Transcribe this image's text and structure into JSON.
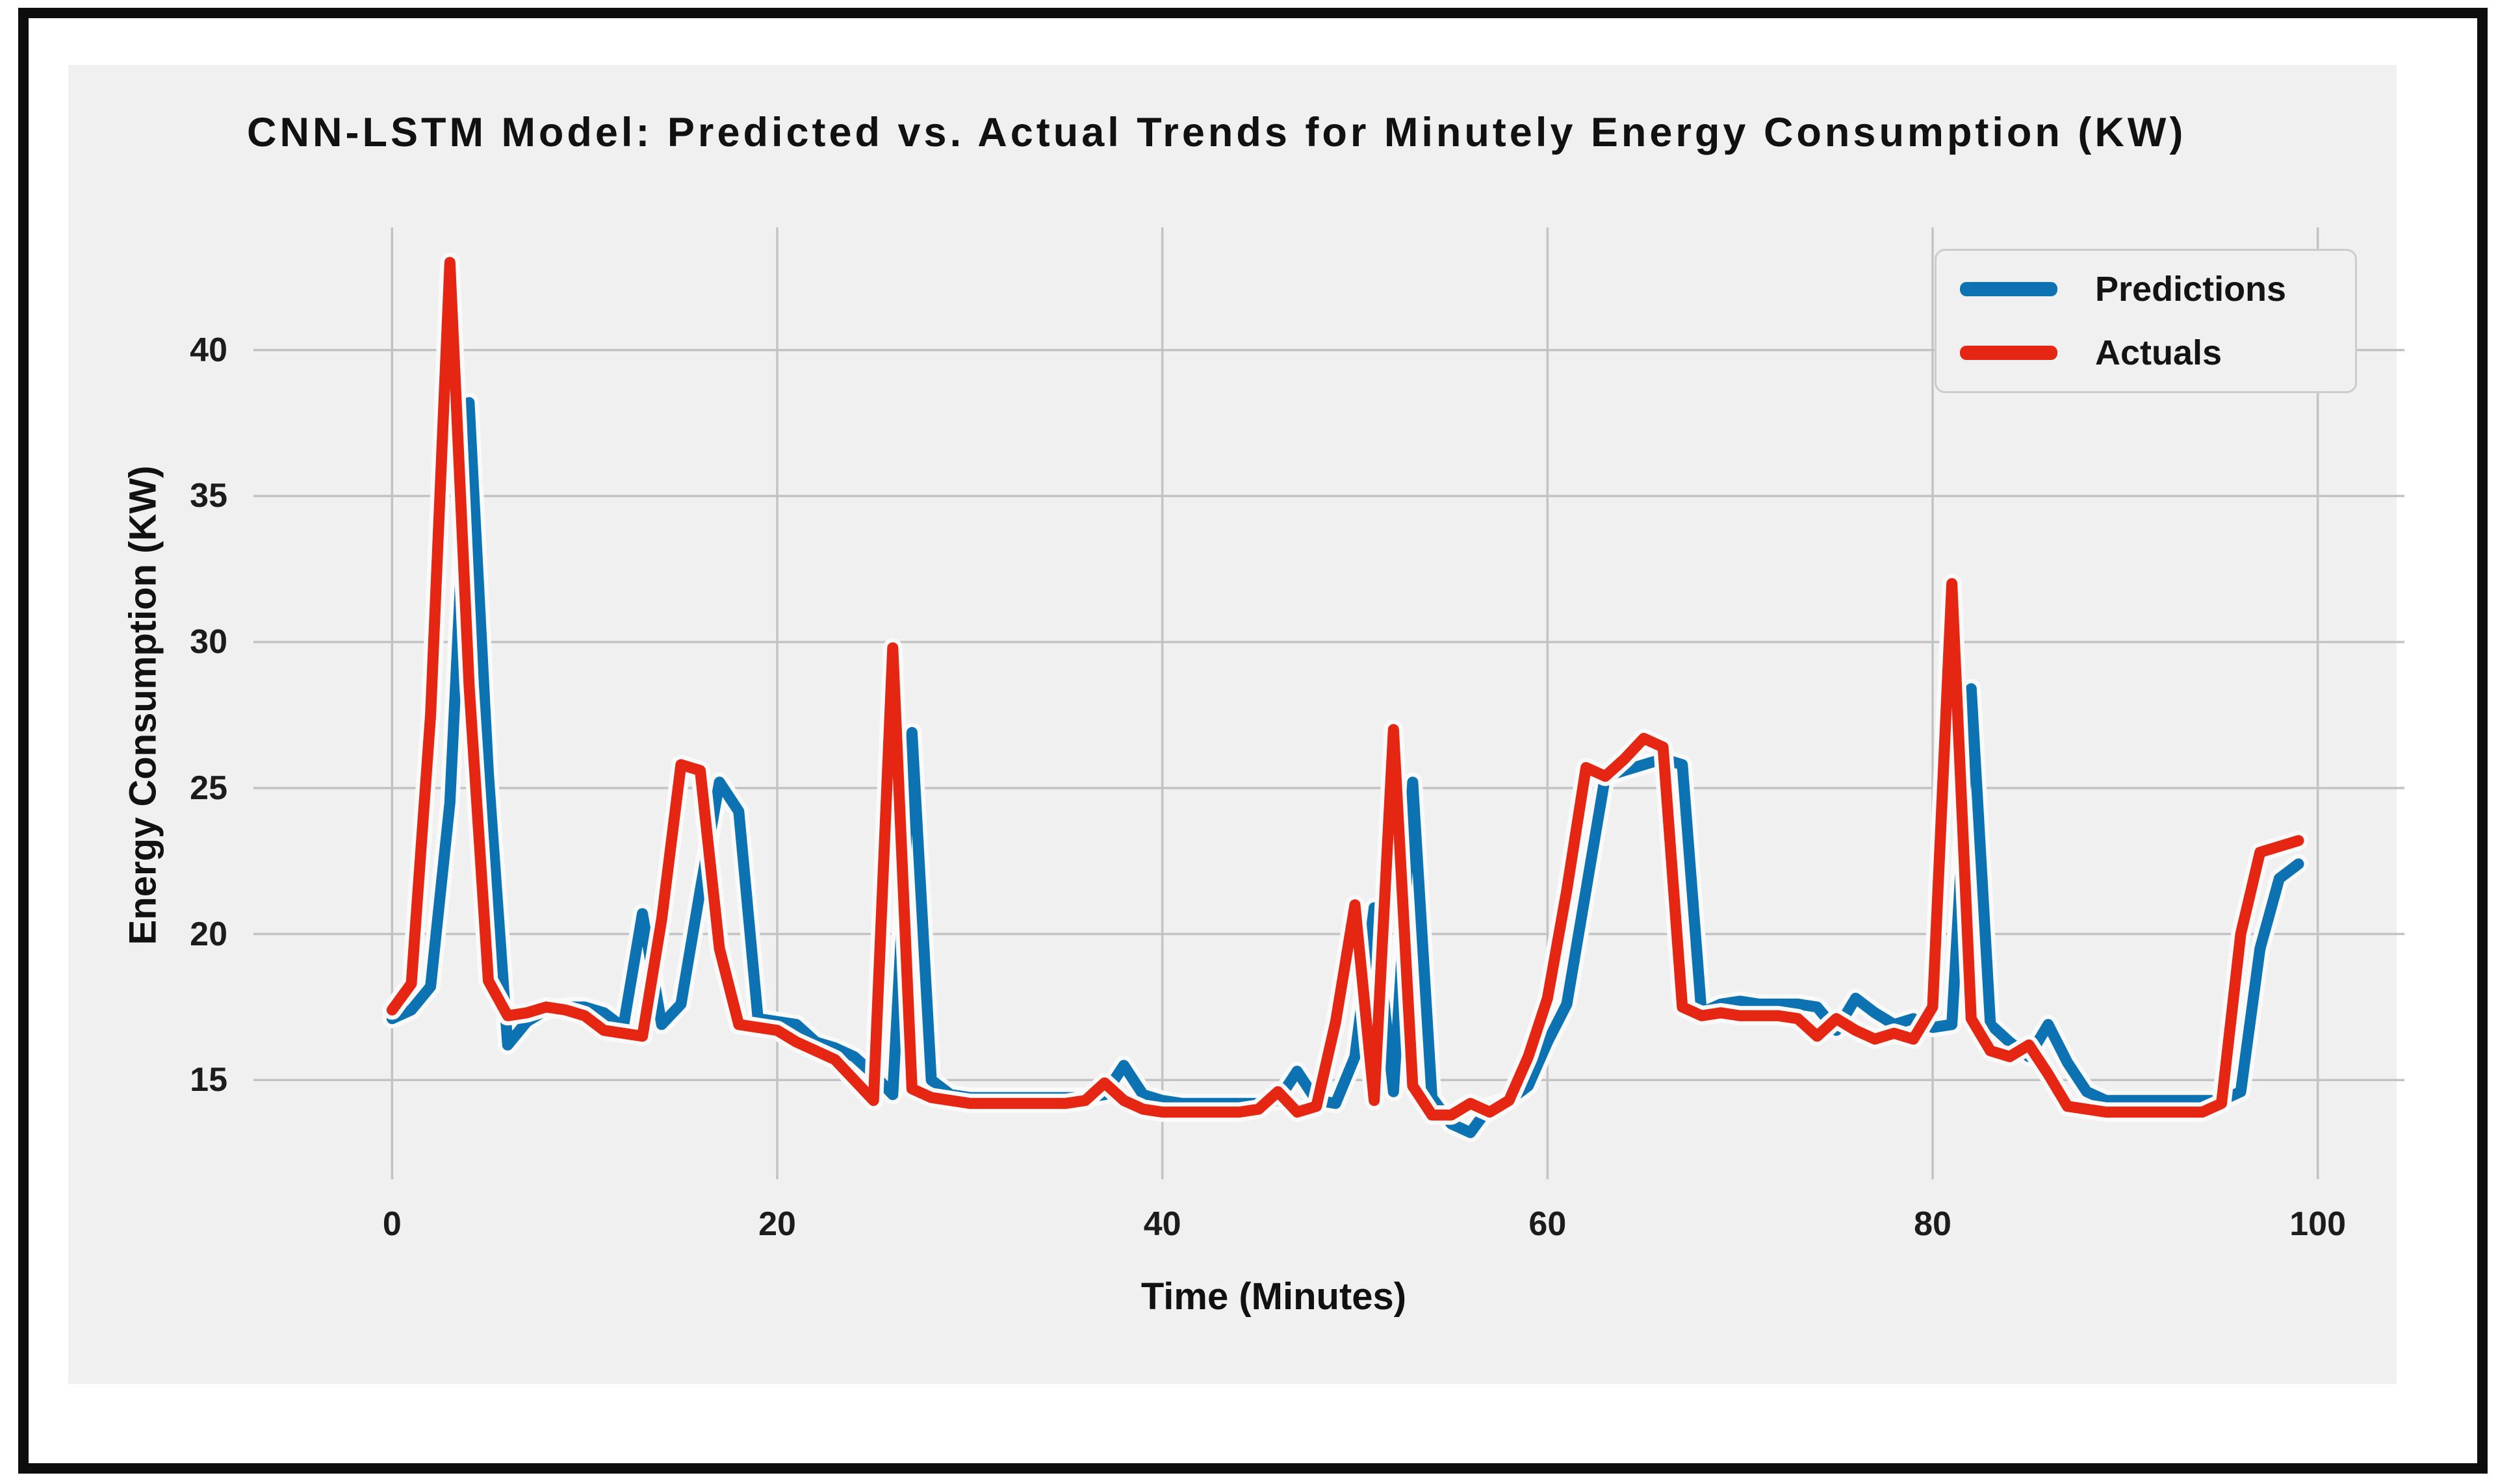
{
  "figure": {
    "background_color": "#f0f0f0",
    "frame_color": "#0d0d0d",
    "grid_color": "#c3c3c3",
    "halo_color": "#fafafa"
  },
  "chart_data": {
    "type": "line",
    "title": "CNN-LSTM Model: Predicted vs. Actual Trends for Minutely Energy Consumption (KW)",
    "xlabel": "Time (Minutes)",
    "ylabel": "Energy Consumption (KW)",
    "x_start": 0,
    "x_step": 1,
    "xlim": [
      -7.2,
      104.5
    ],
    "ylim": [
      11.6,
      44.2
    ],
    "xticks": [
      0,
      20,
      40,
      60,
      80,
      100
    ],
    "yticks": [
      15,
      20,
      25,
      30,
      35,
      40
    ],
    "grid": true,
    "legend_position": "upper right",
    "series": [
      {
        "name": "Predictions",
        "color": "#0d72b2",
        "values": [
          17.1,
          17.4,
          18.2,
          24.5,
          38.2,
          25.5,
          16.2,
          17.0,
          17.4,
          17.5,
          17.5,
          17.3,
          16.8,
          20.7,
          16.9,
          17.6,
          21.5,
          25.2,
          24.2,
          17.1,
          17.0,
          16.9,
          16.3,
          16.1,
          15.8,
          15.2,
          14.5,
          26.9,
          15.0,
          14.5,
          14.4,
          14.4,
          14.4,
          14.4,
          14.4,
          14.4,
          14.4,
          14.5,
          15.5,
          14.5,
          14.3,
          14.2,
          14.2,
          14.2,
          14.2,
          14.2,
          14.3,
          15.3,
          14.3,
          14.2,
          15.8,
          20.9,
          14.6,
          25.2,
          14.4,
          13.5,
          13.2,
          14.1,
          14.3,
          14.8,
          16.3,
          17.6,
          21.5,
          25.4,
          25.6,
          25.8,
          26.0,
          25.8,
          17.3,
          17.6,
          17.7,
          17.6,
          17.6,
          17.6,
          17.5,
          16.7,
          17.8,
          17.3,
          16.9,
          17.1,
          16.8,
          16.9,
          28.4,
          16.9,
          16.3,
          15.8,
          16.9,
          15.6,
          14.6,
          14.3,
          14.3,
          14.3,
          14.3,
          14.3,
          14.3,
          14.3,
          14.6,
          19.5,
          21.9,
          22.4
        ]
      },
      {
        "name": "Actuals",
        "color": "#e52613",
        "values": [
          17.4,
          18.3,
          27.5,
          43.0,
          28.5,
          18.4,
          17.2,
          17.3,
          17.5,
          17.4,
          17.2,
          16.7,
          16.6,
          16.5,
          20.5,
          25.8,
          25.6,
          19.5,
          16.9,
          16.8,
          16.7,
          16.3,
          16.0,
          15.7,
          15.0,
          14.3,
          29.8,
          14.7,
          14.4,
          14.3,
          14.2,
          14.2,
          14.2,
          14.2,
          14.2,
          14.2,
          14.3,
          14.9,
          14.3,
          14.0,
          13.9,
          13.9,
          13.9,
          13.9,
          13.9,
          14.0,
          14.6,
          13.9,
          14.1,
          17.0,
          21.0,
          14.3,
          27.0,
          14.8,
          13.8,
          13.8,
          14.2,
          13.9,
          14.3,
          15.8,
          17.8,
          21.5,
          25.7,
          25.4,
          26.0,
          26.7,
          26.4,
          17.5,
          17.2,
          17.3,
          17.2,
          17.2,
          17.2,
          17.1,
          16.5,
          17.1,
          16.7,
          16.4,
          16.6,
          16.4,
          17.5,
          32.0,
          17.1,
          16.0,
          15.8,
          16.2,
          15.2,
          14.1,
          14.0,
          13.9,
          13.9,
          13.9,
          13.9,
          13.9,
          13.9,
          14.2,
          20.0,
          22.8,
          23.0,
          23.2
        ]
      }
    ]
  }
}
